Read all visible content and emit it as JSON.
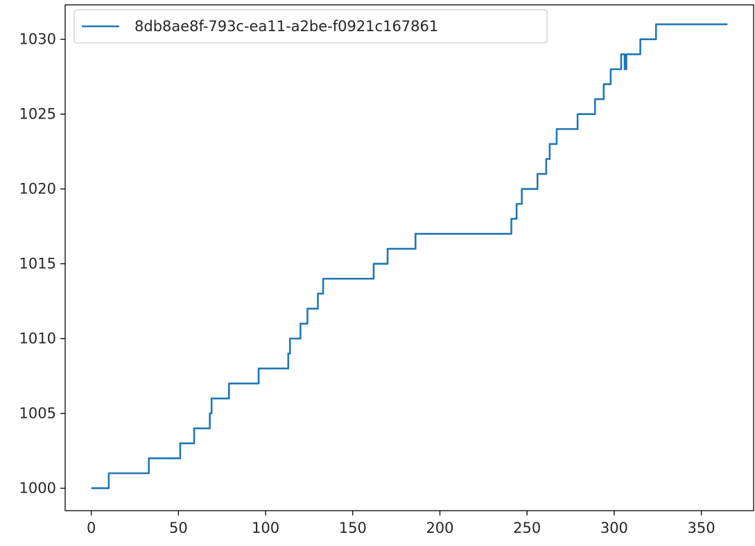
{
  "chart_data": {
    "type": "line",
    "title": "",
    "xlabel": "",
    "ylabel": "",
    "xlim": [
      -15,
      380
    ],
    "ylim": [
      998.5,
      1032.3
    ],
    "grid": false,
    "legend_position": "top-left",
    "x_ticks": [
      "0",
      "50",
      "100",
      "150",
      "200",
      "250",
      "300",
      "350"
    ],
    "y_ticks": [
      "1000",
      "1005",
      "1010",
      "1015",
      "1020",
      "1025",
      "1030"
    ],
    "series": [
      {
        "name": "8db8ae8f-793c-ea11-a2be-f0921c167861",
        "color": "#1f77b4",
        "x": [
          0,
          10,
          10,
          33,
          33,
          51,
          51,
          59,
          59,
          68,
          68,
          69,
          69,
          79,
          79,
          96,
          96,
          113,
          113,
          114,
          114,
          116,
          116,
          120,
          120,
          124,
          124,
          130,
          130,
          133,
          133,
          162,
          162,
          170,
          170,
          186,
          186,
          233,
          233,
          241,
          241,
          243,
          243,
          244,
          244,
          245,
          245,
          247,
          247,
          250,
          250,
          256,
          256,
          257,
          257,
          261,
          261,
          262,
          262,
          263,
          263,
          265,
          265,
          267,
          267,
          268,
          268,
          279,
          279,
          289,
          289,
          294,
          294,
          298,
          298,
          303,
          303,
          304,
          304,
          306,
          306,
          307,
          307,
          315,
          315,
          324,
          324,
          360,
          360,
          365
        ],
        "y": [
          1000,
          1000,
          1001,
          1001,
          1002,
          1002,
          1003,
          1003,
          1004,
          1004,
          1005,
          1005,
          1006,
          1006,
          1007,
          1007,
          1008,
          1008,
          1009,
          1009,
          1010,
          1010,
          1010,
          1010,
          1011,
          1011,
          1012,
          1012,
          1013,
          1013,
          1014,
          1014,
          1015,
          1015,
          1016,
          1016,
          1017,
          1017,
          1017,
          1017,
          1018,
          1018,
          1018,
          1018,
          1019,
          1019,
          1019,
          1019,
          1020,
          1020,
          1020,
          1020,
          1021,
          1021,
          1021,
          1021,
          1022,
          1022,
          1022,
          1022,
          1023,
          1023,
          1023,
          1023,
          1024,
          1024,
          1024,
          1024,
          1025,
          1025,
          1026,
          1026,
          1027,
          1027,
          1028,
          1028,
          1028,
          1028,
          1029,
          1029,
          1028,
          1028,
          1029,
          1029,
          1030,
          1030,
          1031,
          1031,
          1031,
          1031
        ]
      }
    ]
  }
}
